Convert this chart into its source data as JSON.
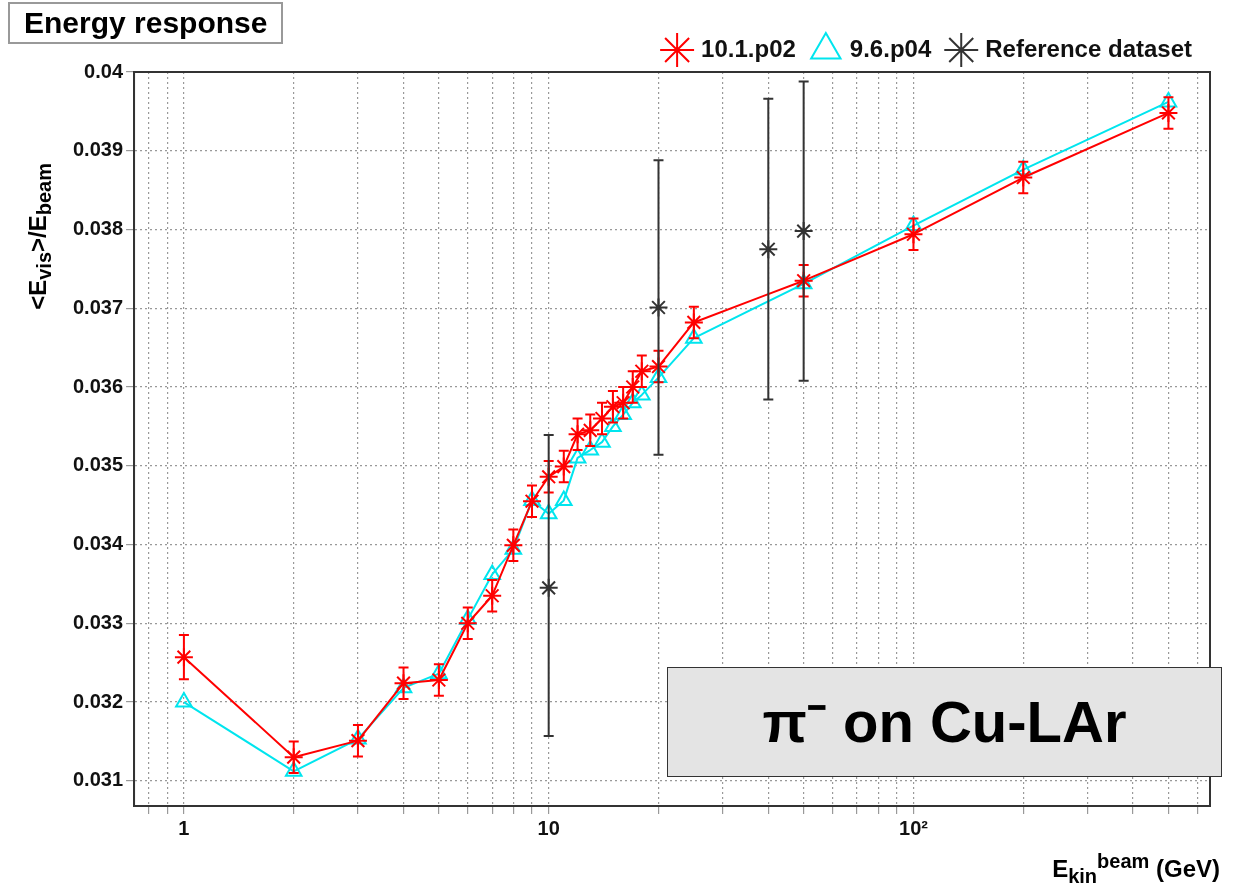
{
  "chart_data": {
    "type": "line",
    "title": "Energy response",
    "xlabel": "E$_{kin}$$^{beam}$ (GeV)",
    "ylabel": "<E$_{vis}$>/E$_{beam}$",
    "annotations": [
      "π⁻ on Cu-LAr"
    ],
    "log": "x",
    "grid": true,
    "legend": "top right",
    "line_style": "solid",
    "xlim": [
      0.73,
      650
    ],
    "ylim": [
      0.03068,
      0.04
    ],
    "xticks": [
      {
        "value": 0.8,
        "label": null
      },
      {
        "value": 0.9,
        "label": null
      },
      1,
      {
        "value": 2,
        "label": null
      },
      {
        "value": 3,
        "label": null
      },
      {
        "value": 4,
        "label": null
      },
      {
        "value": 5,
        "label": null
      },
      {
        "value": 6,
        "label": null
      },
      {
        "value": 7,
        "label": null
      },
      {
        "value": 8,
        "label": null
      },
      {
        "value": 9,
        "label": null
      },
      10,
      {
        "value": 20,
        "label": null
      },
      {
        "value": 30,
        "label": null
      },
      {
        "value": 40,
        "label": null
      },
      {
        "value": 50,
        "label": null
      },
      {
        "value": 60,
        "label": null
      },
      {
        "value": 70,
        "label": null
      },
      {
        "value": 80,
        "label": null
      },
      {
        "value": 90,
        "label": null
      },
      {
        "value": 100,
        "label": "10²"
      },
      {
        "value": 200,
        "label": null
      },
      {
        "value": 300,
        "label": null
      },
      {
        "value": 400,
        "label": null
      },
      {
        "value": 500,
        "label": null
      },
      {
        "value": 600,
        "label": null
      }
    ],
    "yticks": [
      0.031,
      0.032,
      0.033,
      0.034,
      0.035,
      0.036,
      0.037,
      0.038,
      0.039,
      0.04
    ],
    "series": [
      {
        "name": "10.1.p02",
        "color": "#ff0000",
        "marker": "cross",
        "x": [
          1,
          2,
          3,
          4,
          5,
          6,
          7,
          8,
          9,
          10,
          11,
          12,
          13,
          14,
          15,
          16,
          17,
          18,
          20,
          25,
          50,
          100,
          200,
          500
        ],
        "values": [
          0.03257,
          0.0313,
          0.03151,
          0.03224,
          0.03228,
          0.033,
          0.03335,
          0.03399,
          0.03455,
          0.03486,
          0.03499,
          0.0354,
          0.03545,
          0.0356,
          0.03575,
          0.0358,
          0.036,
          0.0362,
          0.03626,
          0.03682,
          0.03735,
          0.03794,
          0.03866,
          0.03948
        ],
        "errors": [
          0.00028,
          0.0002,
          0.0002,
          0.0002,
          0.0002,
          0.0002,
          0.0002,
          0.0002,
          0.0002,
          0.0002,
          0.0002,
          0.0002,
          0.0002,
          0.0002,
          0.0002,
          0.0002,
          0.0002,
          0.0002,
          0.0002,
          0.0002,
          0.0002,
          0.0002,
          0.0002,
          0.0002
        ]
      },
      {
        "name": "9.6.p04",
        "color": "#00e5ee",
        "marker": "triangle",
        "x": [
          1,
          2,
          3,
          4,
          5,
          6,
          7,
          8,
          9,
          10,
          11,
          12,
          13,
          14,
          15,
          16,
          17,
          18,
          20,
          25,
          50,
          100,
          200,
          500
        ],
        "values": [
          0.032,
          0.03112,
          0.03153,
          0.03218,
          0.03236,
          0.03305,
          0.03362,
          0.03394,
          0.03456,
          0.03439,
          0.03456,
          0.0351,
          0.0352,
          0.0353,
          0.0355,
          0.03565,
          0.0358,
          0.0359,
          0.03612,
          0.03662,
          0.03731,
          0.03805,
          0.03876,
          0.03962
        ]
      },
      {
        "name": "Reference dataset",
        "color": "#333333",
        "marker": "cross",
        "type": "scatter",
        "x": [
          10,
          20,
          40,
          50
        ],
        "values": [
          0.03345,
          0.03701,
          0.03775,
          0.03798
        ],
        "errors": [
          [
            0.03157,
            0.03539
          ],
          [
            0.03514,
            0.03888
          ],
          [
            0.03584,
            0.03966
          ],
          [
            0.03608,
            0.03988
          ]
        ]
      }
    ]
  }
}
